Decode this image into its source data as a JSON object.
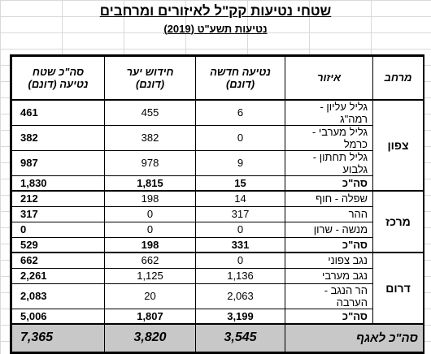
{
  "title": "שטחי נטיעות קק\"ל לאיזורים ומרחבים",
  "subtitle": "נטיעות תשע\"ט (2019)",
  "headers": {
    "region": "מרחב",
    "area": "איזור",
    "new_planting": "נטיעה חדשה\n(דונם)",
    "forest_renewal": "חידוש יער\n(דונם)",
    "total_planting": "סה\"כ שטח\nנטיעה (דונם)"
  },
  "regions": [
    {
      "name": "צפון",
      "rows": [
        {
          "area": "גליל עליון - רמה\"ג",
          "new": "6",
          "renew": "455",
          "total": "461"
        },
        {
          "area": "גליל מערבי - כרמל",
          "new": "0",
          "renew": "382",
          "total": "382"
        },
        {
          "area": "גליל תחתון - גלבוע",
          "new": "9",
          "renew": "978",
          "total": "987"
        }
      ],
      "subtotal": {
        "label": "סה\"כ",
        "new": "15",
        "renew": "1,815",
        "total": "1,830"
      }
    },
    {
      "name": "מרכז",
      "rows": [
        {
          "area": "שפלה - חוף",
          "new": "14",
          "renew": "198",
          "total": "212"
        },
        {
          "area": "ההר",
          "new": "317",
          "renew": "0",
          "total": "317"
        },
        {
          "area": "מנשה - שרון",
          "new": "0",
          "renew": "0",
          "total": "0"
        }
      ],
      "subtotal": {
        "label": "סה\"כ",
        "new": "331",
        "renew": "198",
        "total": "529"
      }
    },
    {
      "name": "דרום",
      "rows": [
        {
          "area": "נגב צפוני",
          "new": "0",
          "renew": "662",
          "total": "662"
        },
        {
          "area": "נגב מערבי",
          "new": "1,136",
          "renew": "1,125",
          "total": "2,261"
        },
        {
          "area": "הר הנגב - הערבה",
          "new": "2,063",
          "renew": "20",
          "total": "2,083"
        }
      ],
      "subtotal": {
        "label": "סה\"כ",
        "new": "3,199",
        "renew": "1,807",
        "total": "5,006"
      }
    }
  ],
  "grand_total": {
    "label": "סה\"כ לאגף",
    "new": "3,545",
    "renew": "3,820",
    "total": "7,365"
  }
}
